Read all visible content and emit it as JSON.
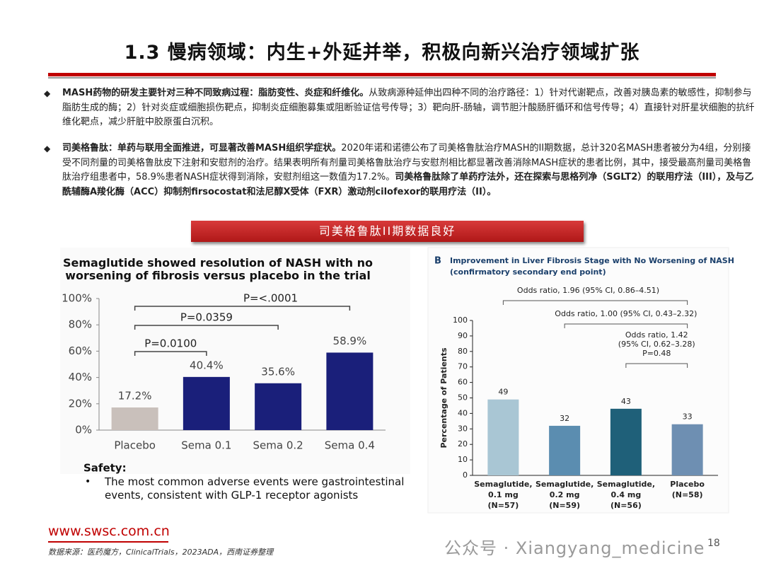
{
  "header": {
    "title": "1.3 慢病领域：内生+外延并举，积极向新兴治疗领域扩张"
  },
  "bullets": [
    {
      "bold": "MASH药物的研发主要针对三种不同致病过程：脂肪变性、炎症和纤维化。",
      "text": "从致病源种延伸出四种不同的治疗路径：1）针对代谢靶点，改善对胰岛素的敏感性，抑制参与脂肪生成的酶；2）针对炎症或细胞损伤靶点，抑制炎症细胞募集或阻断验证信号传导；3）靶向肝-肠轴，调节胆汁酸肠肝循环和信号传导；4）直接针对肝星状细胞的抗纤维化靶点，减少肝脏中胶原蛋白沉积。",
      "bold2": ""
    },
    {
      "bold": "司美格鲁肽：单药与联用全面推进，可显著改善MASH组织学症状。",
      "text": "2020年诺和诺德公布了司美格鲁肽治疗MASH的II期数据，总计320名MASH患者被分为4组，分别接受不同剂量的司美格鲁肽皮下注射和安慰剂的治疗。结果表明所有剂量司美格鲁肽治疗与安慰剂相比都显著改善消除MASH症状的患者比例，其中，接受最高剂量司美格鲁肽治疗组患者中，58.9%患者NASH症状得到消除，安慰剂组这一数值为17.2%。",
      "bold2": "司美格鲁肽除了单药疗法外，还在探索与思格列净（SGLT2）的联用疗法（III），及与乙酰辅酶A羧化酶（ACC）抑制剂firsocostat和法尼醇X受体（FXR）激动剂cilofexor的联用疗法（II）。"
    }
  ],
  "banner": "司美格鲁肽II期数据良好",
  "chart_data": [
    {
      "type": "bar",
      "title": "Semaglutide showed resolution of NASH with no\nworsening of fibrosis versus placebo in the trial",
      "categories": [
        "Placebo",
        "Sema 0.1",
        "Sema 0.2",
        "Sema 0.4"
      ],
      "values": [
        17.2,
        40.4,
        35.6,
        58.9
      ],
      "value_labels": [
        "17.2%",
        "40.4%",
        "35.6%",
        "58.9%"
      ],
      "colors": [
        "#c9c0bb",
        "#1a1f7a",
        "#1a1f7a",
        "#1a1f7a"
      ],
      "ylim": [
        0,
        100
      ],
      "yticks": [
        {
          "value": 0,
          "label": "0%"
        },
        {
          "value": 20,
          "label": "20%"
        },
        {
          "value": 40,
          "label": "40%"
        },
        {
          "value": 60,
          "label": "60%"
        },
        {
          "value": 80,
          "label": "80%"
        },
        {
          "value": 100,
          "label": "100%"
        }
      ],
      "annotations": [
        "P=0.0100",
        "P=0.0359",
        "P=<.0001"
      ],
      "notes": {
        "heading": "Safety:",
        "text": "The most common adverse events were gastrointestinal\nevents, consistent with GLP-1 receptor agonists"
      }
    },
    {
      "type": "bar",
      "panel": "B",
      "title": "Improvement in Liver Fibrosis Stage with No Worsening of NASH\n(confirmatory secondary end point)",
      "ylabel": "Percentage of Patients",
      "categories": [
        "Semaglutide,\n0.1 mg\n(N=57)",
        "Semaglutide,\n0.2 mg\n(N=59)",
        "Semaglutide,\n0.4 mg\n(N=56)",
        "Placebo\n(N=58)"
      ],
      "values": [
        49,
        32,
        43,
        33
      ],
      "colors": [
        "#a9c6d4",
        "#5b8db0",
        "#1f6079",
        "#6e8fb2"
      ],
      "ylim": [
        0,
        100
      ],
      "yticks": [
        0,
        10,
        20,
        30,
        40,
        50,
        60,
        70,
        80,
        90,
        100
      ],
      "annotations": [
        "Odds ratio, 1.96 (95% CI, 0.86–4.51)",
        "Odds ratio, 1.00 (95% CI, 0.43–2.32)",
        "Odds ratio, 1.42\n(95% CI, 0.62–3.28)\nP=0.48"
      ]
    }
  ],
  "footer": {
    "url": "www.swsc.com.cn",
    "source": "数据来源：医药魔方，ClinicalTrials，2023ADA，西南证券整理",
    "page": "18",
    "watermark": "公众号 · Xiangyang_medicine"
  }
}
